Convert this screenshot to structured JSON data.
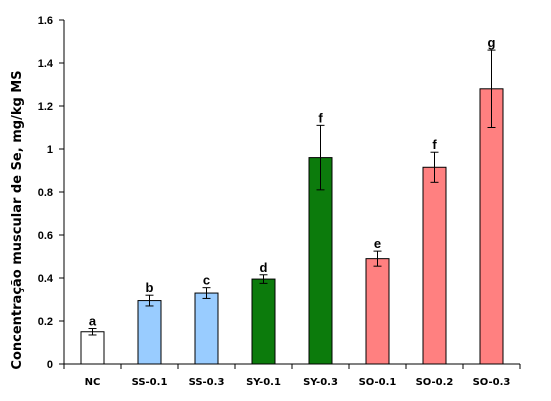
{
  "chart_data": {
    "type": "bar",
    "title": "",
    "xlabel": "",
    "ylabel": "Concentração muscular de Se, mg/kg MS",
    "ylim": [
      0,
      1.6
    ],
    "yticks": [
      "0",
      "0.2",
      "0.4",
      "0.6",
      "0.8",
      "1",
      "1.2",
      "1.4",
      "1.6"
    ],
    "grid": false,
    "categories": [
      "NC",
      "SS-0.1",
      "SS-0.3",
      "SY-0.1",
      "SY-0.3",
      "SO-0.1",
      "SO-0.2",
      "SO-0.3"
    ],
    "values": [
      0.15,
      0.295,
      0.33,
      0.395,
      0.96,
      0.49,
      0.915,
      1.28
    ],
    "errors": [
      0.015,
      0.025,
      0.025,
      0.02,
      0.15,
      0.035,
      0.07,
      0.18
    ],
    "significance_letters": [
      "a",
      "b",
      "c",
      "d",
      "f",
      "e",
      "f",
      "g"
    ],
    "bar_colors": [
      "#ffffff",
      "#99ccff",
      "#99ccff",
      "#0c7b0c",
      "#0c7b0c",
      "#ff8080",
      "#ff8080",
      "#ff8080"
    ]
  }
}
